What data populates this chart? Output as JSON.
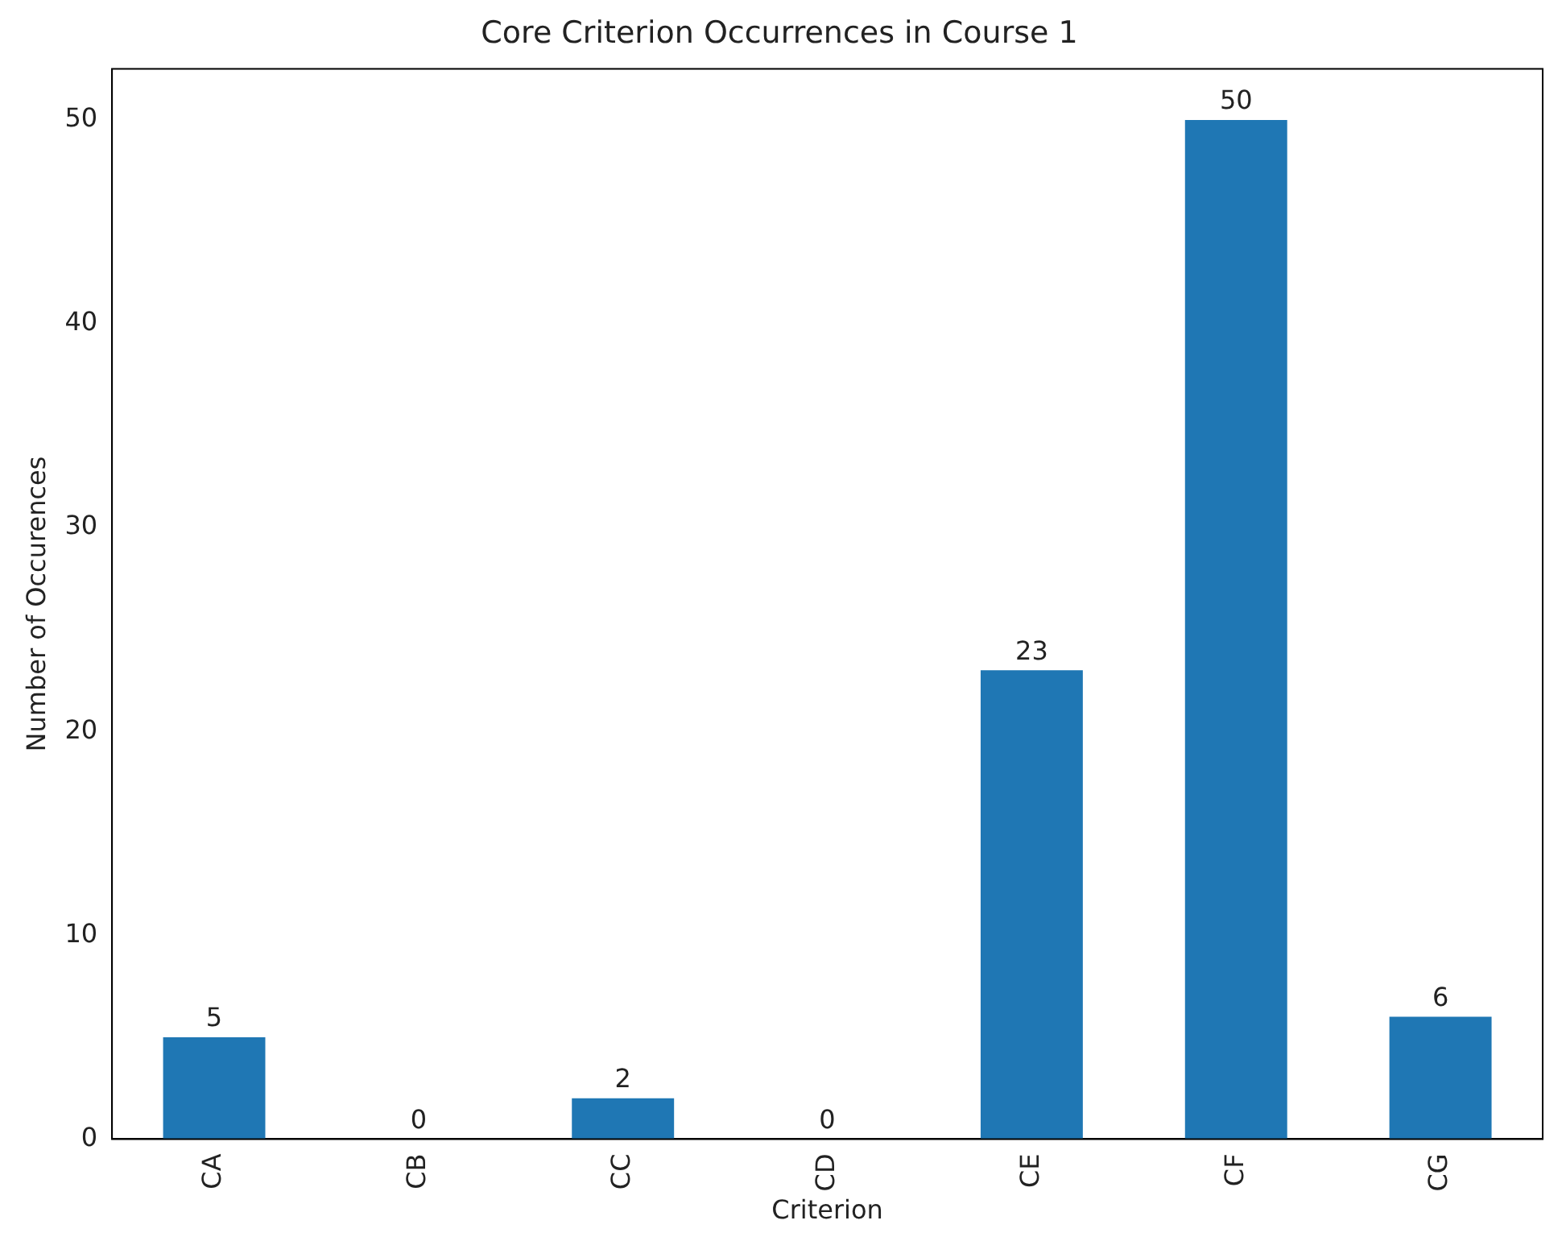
{
  "chart_data": {
    "type": "bar",
    "title": "Core Criterion Occurrences in Course 1",
    "xlabel": "Criterion",
    "ylabel": "Number of Occurences",
    "categories": [
      "CA",
      "CB",
      "CC",
      "CD",
      "CE",
      "CF",
      "CG"
    ],
    "values": [
      5,
      0,
      2,
      0,
      23,
      50,
      6
    ],
    "color": "#1f77b4",
    "ylim": [
      0,
      52.5
    ],
    "yticks": [
      0,
      10,
      20,
      30,
      40,
      50
    ],
    "grid": false,
    "legend": false,
    "data_labels": true
  }
}
